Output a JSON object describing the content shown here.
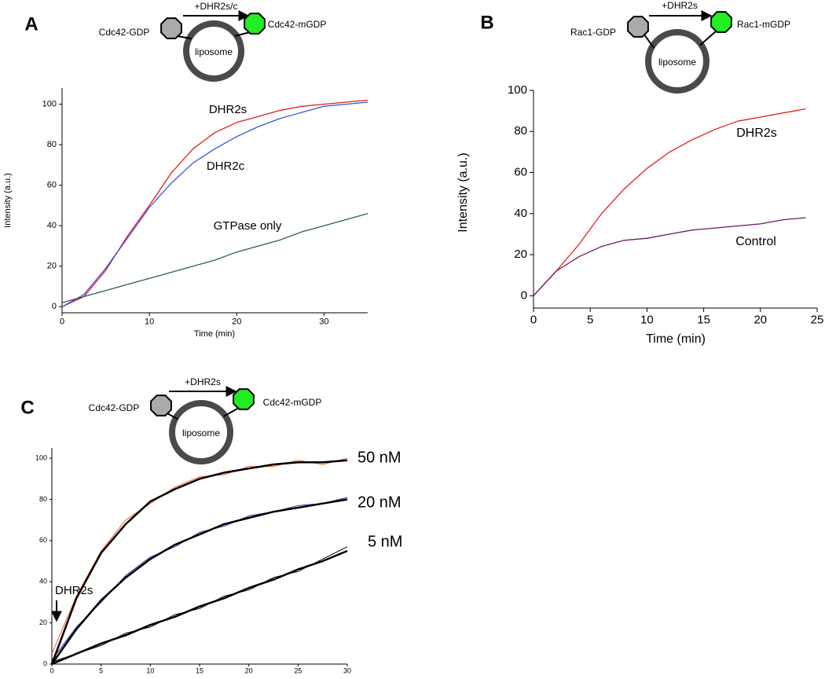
{
  "chart_data": [
    {
      "type": "line",
      "panel": "A",
      "diagram": {
        "arrow_label": "+DHR2s/c",
        "left_label": "Cdc42-GDP",
        "right_label": "Cdc42-mGDP",
        "circle_label": "liposome"
      },
      "x_label": "Time (min)",
      "y_label": "Intensity (a.u.)",
      "x": [
        0,
        2.5,
        5,
        7.5,
        10,
        12.5,
        15,
        17.5,
        20,
        22.5,
        25,
        27.5,
        30,
        32.5,
        35
      ],
      "series": [
        {
          "name": "DHR2s",
          "color": "#e0201c",
          "values": [
            0,
            5,
            18,
            35,
            50,
            66,
            78,
            86,
            91,
            94,
            97,
            99,
            100,
            101,
            102
          ]
        },
        {
          "name": "DHR2c",
          "color": "#3a55d8",
          "values": [
            0,
            6,
            19,
            34,
            49,
            61,
            71,
            78,
            84,
            89,
            93,
            96,
            99,
            100,
            101
          ]
        },
        {
          "name": "GTPase only",
          "color": "#2f5f55",
          "values": [
            2,
            5,
            8,
            11,
            14,
            17,
            20,
            23,
            27,
            30,
            33,
            37,
            40,
            43,
            46
          ]
        }
      ],
      "xlim": [
        0,
        35
      ],
      "ylim": [
        -3,
        108
      ],
      "xticks": [
        0,
        10,
        20,
        30
      ],
      "yticks": [
        0,
        20,
        40,
        60,
        80,
        100
      ]
    },
    {
      "type": "line",
      "panel": "B",
      "diagram": {
        "arrow_label": "+DHR2s",
        "left_label": "Rac1-GDP",
        "right_label": "Rac1-mGDP",
        "circle_label": "liposome"
      },
      "x_label": "Time (min)",
      "y_label": "Intensity (a.u.)",
      "x": [
        0,
        2,
        4,
        6,
        8,
        10,
        12,
        14,
        16,
        18,
        20,
        22,
        24
      ],
      "series": [
        {
          "name": "DHR2s",
          "color": "#e0201c",
          "values": [
            0,
            12,
            25,
            40,
            52,
            62,
            70,
            76,
            81,
            85,
            87,
            89,
            91
          ]
        },
        {
          "name": "Control",
          "color": "#6b1a6b",
          "values": [
            0,
            12,
            19,
            24,
            27,
            28,
            30,
            32,
            33,
            34,
            35,
            37,
            38
          ]
        }
      ],
      "xlim": [
        0,
        25
      ],
      "ylim": [
        -6,
        100
      ],
      "xticks": [
        0,
        5,
        10,
        15,
        20,
        25
      ],
      "yticks": [
        0,
        20,
        40,
        60,
        80,
        100
      ]
    },
    {
      "type": "line",
      "panel": "C",
      "diagram": {
        "arrow_label": "+DHR2s",
        "left_label": "Cdc42-GDP",
        "right_label": "Cdc42-mGDP",
        "circle_label": "liposome"
      },
      "annotation": "DHR2s",
      "x": [
        0,
        2.5,
        5,
        7.5,
        10,
        12.5,
        15,
        17.5,
        20,
        22.5,
        25,
        27.5,
        30
      ],
      "series": [
        {
          "name": "50 nM",
          "color": "#ff5a2a",
          "label_color": "#e8120c",
          "values": [
            5,
            33,
            55,
            70,
            78,
            86,
            91,
            92,
            96,
            96,
            99,
            97,
            100
          ]
        },
        {
          "name": "20 nM",
          "color": "#2a2aa0",
          "label_color": "#3a5fe0",
          "values": [
            2,
            18,
            30,
            43,
            52,
            57,
            64,
            67,
            72,
            74,
            77,
            78,
            81
          ]
        },
        {
          "name": "5 nM",
          "color": "#000000",
          "label_color": "#000000",
          "values": [
            1,
            5,
            9,
            15,
            18,
            24,
            27,
            33,
            36,
            42,
            45,
            51,
            57
          ]
        }
      ],
      "fits": [
        {
          "color": "#000000",
          "values": [
            0,
            32,
            54,
            68,
            79,
            85,
            90,
            93,
            95,
            97,
            98,
            98,
            99
          ]
        },
        {
          "color": "#000000",
          "values": [
            0,
            17,
            31,
            42,
            51,
            58,
            63,
            68,
            71,
            74,
            76,
            78,
            80
          ]
        },
        {
          "color": "#000000",
          "values": [
            0,
            5,
            10,
            14,
            19,
            23,
            28,
            32,
            37,
            41,
            46,
            50,
            55
          ]
        }
      ],
      "xlim": [
        0,
        30
      ],
      "ylim": [
        0,
        105
      ],
      "xticks": [
        0,
        5,
        10,
        15,
        20,
        25,
        30
      ],
      "yticks": [
        0,
        20,
        40,
        60,
        80,
        100
      ]
    }
  ]
}
